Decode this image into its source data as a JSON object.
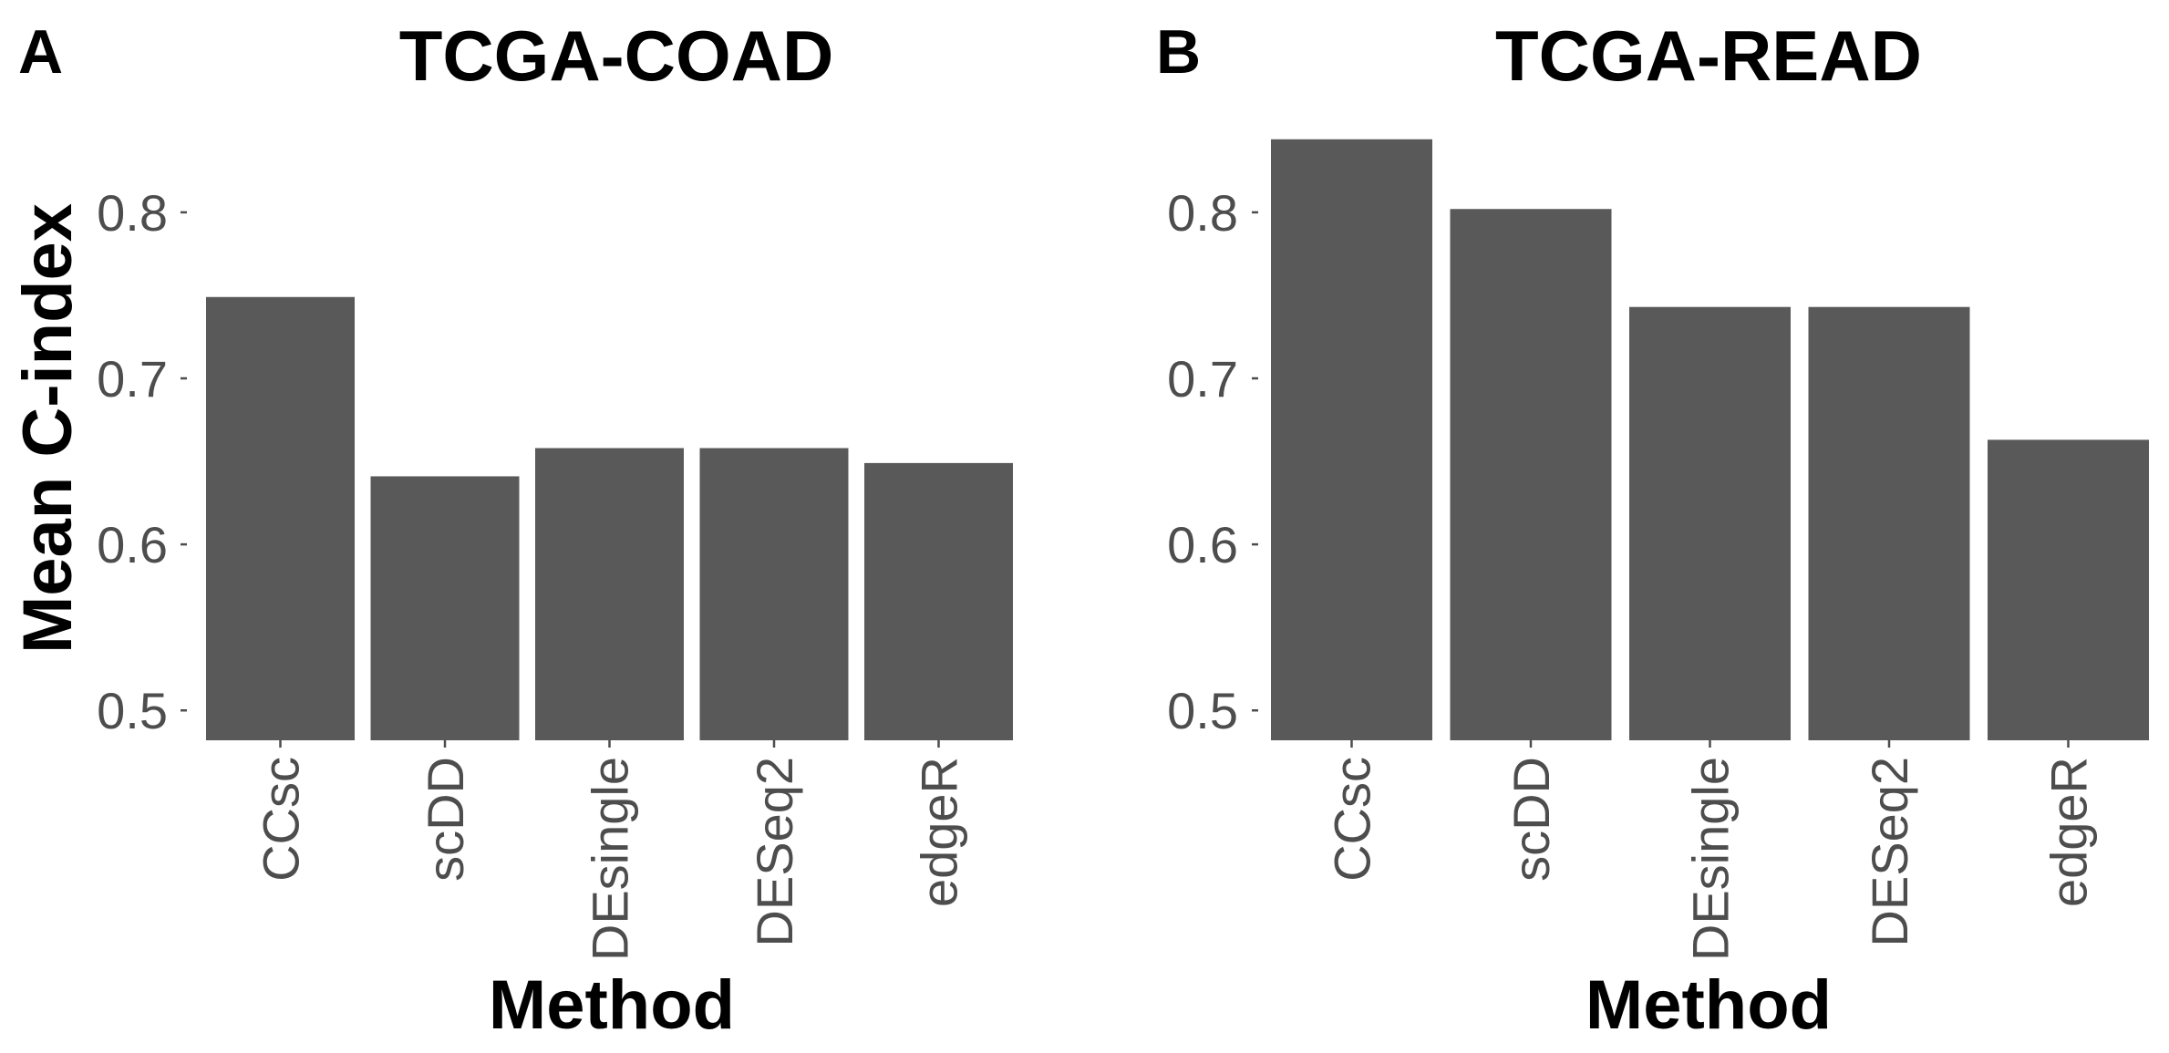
{
  "figure": {
    "ylabel": "Mean C-index"
  },
  "chart_data": [
    {
      "type": "bar",
      "panel_label": "A",
      "title": "TCGA-COAD",
      "xlabel": "Method",
      "ylabel": "Mean C-index",
      "categories": [
        "CCsc",
        "scDD",
        "DEsingle",
        "DESeq2",
        "edgeR"
      ],
      "values": [
        0.749,
        0.641,
        0.658,
        0.658,
        0.649
      ],
      "yticks": [
        0.5,
        0.6,
        0.7,
        0.8
      ],
      "ytick_labels": [
        "0.5",
        "0.6",
        "0.7",
        "0.8"
      ],
      "ylim": [
        0.482,
        0.862
      ],
      "bar_color": "#595959",
      "grid": false
    },
    {
      "type": "bar",
      "panel_label": "B",
      "title": "TCGA-READ",
      "xlabel": "Method",
      "ylabel": "",
      "categories": [
        "CCsc",
        "scDD",
        "DEsingle",
        "DESeq2",
        "edgeR"
      ],
      "values": [
        0.844,
        0.802,
        0.743,
        0.743,
        0.663
      ],
      "yticks": [
        0.5,
        0.6,
        0.7,
        0.8
      ],
      "ytick_labels": [
        "0.5",
        "0.6",
        "0.7",
        "0.8"
      ],
      "ylim": [
        0.482,
        0.862
      ],
      "bar_color": "#595959",
      "grid": false
    }
  ]
}
